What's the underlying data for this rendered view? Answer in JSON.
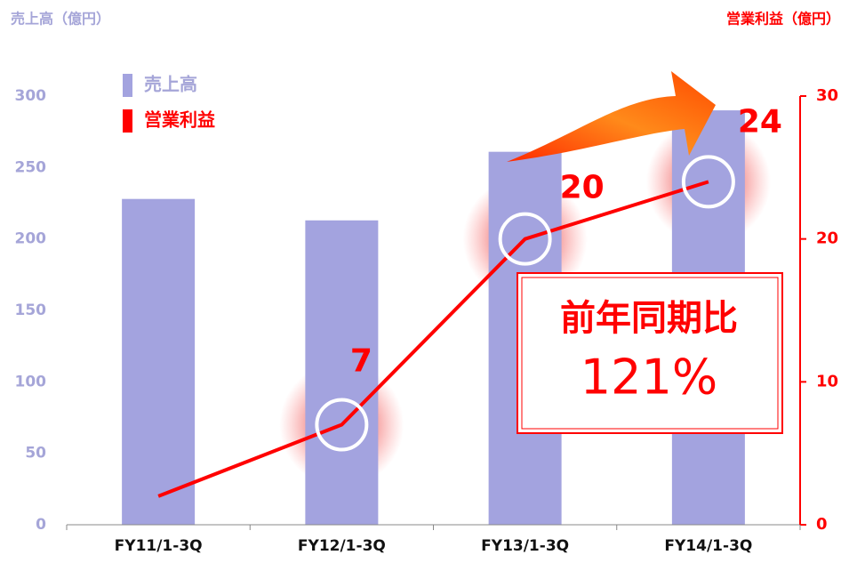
{
  "chart_data": {
    "type": "bar-line",
    "y_axis_title": "売上高（億円）",
    "y2_axis_title": "営業利益（億円）",
    "categories": [
      "FY11/1-3Q",
      "FY12/1-3Q",
      "FY13/1-3Q",
      "FY14/1-3Q"
    ],
    "series": [
      {
        "name": "売上高",
        "color": "#a3a3df",
        "values": [
          228,
          213,
          261,
          290
        ]
      },
      {
        "name": "営業利益",
        "color": "#ff0000",
        "axis": "y2",
        "values": [
          2,
          7,
          20,
          24
        ],
        "value_labels": [
          null,
          "7",
          "20",
          "24"
        ]
      }
    ],
    "ylim": [
      0,
      300
    ],
    "yticks": [
      0,
      50,
      100,
      150,
      200,
      250,
      300
    ],
    "y2lim": [
      0,
      30
    ],
    "y2ticks": [
      0,
      10,
      20,
      30
    ],
    "annotation": [
      "前年同期比",
      "121%"
    ]
  }
}
